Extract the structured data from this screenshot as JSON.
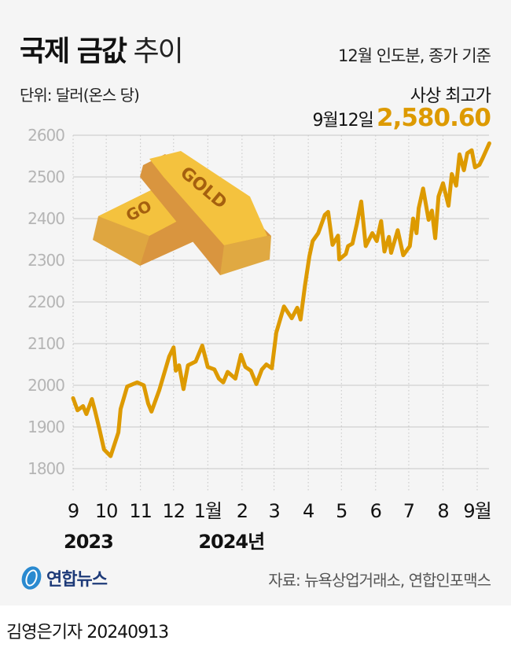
{
  "header": {
    "title_bold": "국제 금값",
    "title_light": "추이",
    "basis": "12월 인도분, 종가 기준",
    "unit": "단위: 달러(온스 당)",
    "record_label": "사상 최고가",
    "record_date": "9월12일",
    "record_value": "2,580.60"
  },
  "footer": {
    "logo": "연합뉴스",
    "source": "자료: 뉴욕상업거래소, 연합인포맥스",
    "byline": "김영은기자 20240913"
  },
  "colors": {
    "line": "#dd9a00",
    "record": "#dd9a00",
    "grid": "#c8c8c8",
    "background": "#f5f5f5"
  },
  "chart_data": {
    "type": "line",
    "ylim": [
      1800,
      2600
    ],
    "yticks": [
      "1800",
      "1900",
      "2000",
      "2100",
      "2200",
      "2300",
      "2400",
      "2500",
      "2600"
    ],
    "xticks": [
      {
        "date": "2023-09-01",
        "label": "9"
      },
      {
        "date": "2023-10-01",
        "label": "10"
      },
      {
        "date": "2023-11-01",
        "label": "11"
      },
      {
        "date": "2023-12-01",
        "label": "12"
      },
      {
        "date": "2024-01-01",
        "label": "1월"
      },
      {
        "date": "2024-02-01",
        "label": "2"
      },
      {
        "date": "2024-03-01",
        "label": "3"
      },
      {
        "date": "2024-04-01",
        "label": "4"
      },
      {
        "date": "2024-05-01",
        "label": "5"
      },
      {
        "date": "2024-06-01",
        "label": "6"
      },
      {
        "date": "2024-07-01",
        "label": "7"
      },
      {
        "date": "2024-08-01",
        "label": "8"
      },
      {
        "date": "2024-09-01",
        "label": "9월"
      }
    ],
    "year_labels": [
      {
        "date": "2023-09-01",
        "label": "2023"
      },
      {
        "date": "2024-01-01",
        "label": "2024년"
      }
    ],
    "grid": true,
    "x": [
      "2023-09-01",
      "2023-09-05",
      "2023-09-10",
      "2023-09-13",
      "2023-09-18",
      "2023-09-21",
      "2023-09-25",
      "2023-09-29",
      "2023-10-05",
      "2023-10-12",
      "2023-10-14",
      "2023-10-20",
      "2023-10-29",
      "2023-11-04",
      "2023-11-08",
      "2023-11-11",
      "2023-11-18",
      "2023-11-27",
      "2023-12-01",
      "2023-12-03",
      "2023-12-06",
      "2023-12-10",
      "2023-12-14",
      "2023-12-21",
      "2023-12-27",
      "2024-01-01",
      "2024-01-07",
      "2024-01-11",
      "2024-01-15",
      "2024-01-19",
      "2024-01-26",
      "2024-01-31",
      "2024-02-04",
      "2024-02-09",
      "2024-02-14",
      "2024-02-19",
      "2024-02-23",
      "2024-02-28",
      "2024-03-03",
      "2024-03-10",
      "2024-03-17",
      "2024-03-22",
      "2024-03-25",
      "2024-03-29",
      "2024-04-02",
      "2024-04-05",
      "2024-04-10",
      "2024-04-16",
      "2024-04-19",
      "2024-04-23",
      "2024-04-28",
      "2024-04-29",
      "2024-05-05",
      "2024-05-07",
      "2024-05-11",
      "2024-05-15",
      "2024-05-19",
      "2024-05-23",
      "2024-05-29",
      "2024-06-02",
      "2024-06-06",
      "2024-06-09",
      "2024-06-13",
      "2024-06-15",
      "2024-06-21",
      "2024-06-26",
      "2024-07-02",
      "2024-07-05",
      "2024-07-08",
      "2024-07-10",
      "2024-07-14",
      "2024-07-19",
      "2024-07-22",
      "2024-07-25",
      "2024-07-28",
      "2024-08-01",
      "2024-08-06",
      "2024-08-09",
      "2024-08-13",
      "2024-08-16",
      "2024-08-20",
      "2024-08-23",
      "2024-08-27",
      "2024-08-30",
      "2024-09-03",
      "2024-09-06",
      "2024-09-12"
    ],
    "values": [
      1969,
      1940,
      1950,
      1931,
      1967,
      1937,
      1893,
      1846,
      1830,
      1887,
      1943,
      1997,
      2007,
      2000,
      1956,
      1937,
      1988,
      2069,
      2091,
      2035,
      2048,
      1991,
      2048,
      2057,
      2095,
      2044,
      2038,
      2016,
      2007,
      2032,
      2016,
      2073,
      2044,
      2035,
      2003,
      2038,
      2050,
      2041,
      2126,
      2189,
      2161,
      2186,
      2158,
      2239,
      2309,
      2346,
      2365,
      2409,
      2416,
      2337,
      2359,
      2302,
      2315,
      2334,
      2340,
      2387,
      2441,
      2334,
      2365,
      2346,
      2394,
      2321,
      2356,
      2318,
      2372,
      2312,
      2334,
      2400,
      2365,
      2425,
      2472,
      2397,
      2419,
      2353,
      2453,
      2485,
      2431,
      2507,
      2479,
      2554,
      2516,
      2557,
      2564,
      2523,
      2529,
      2545,
      2580.6
    ]
  }
}
